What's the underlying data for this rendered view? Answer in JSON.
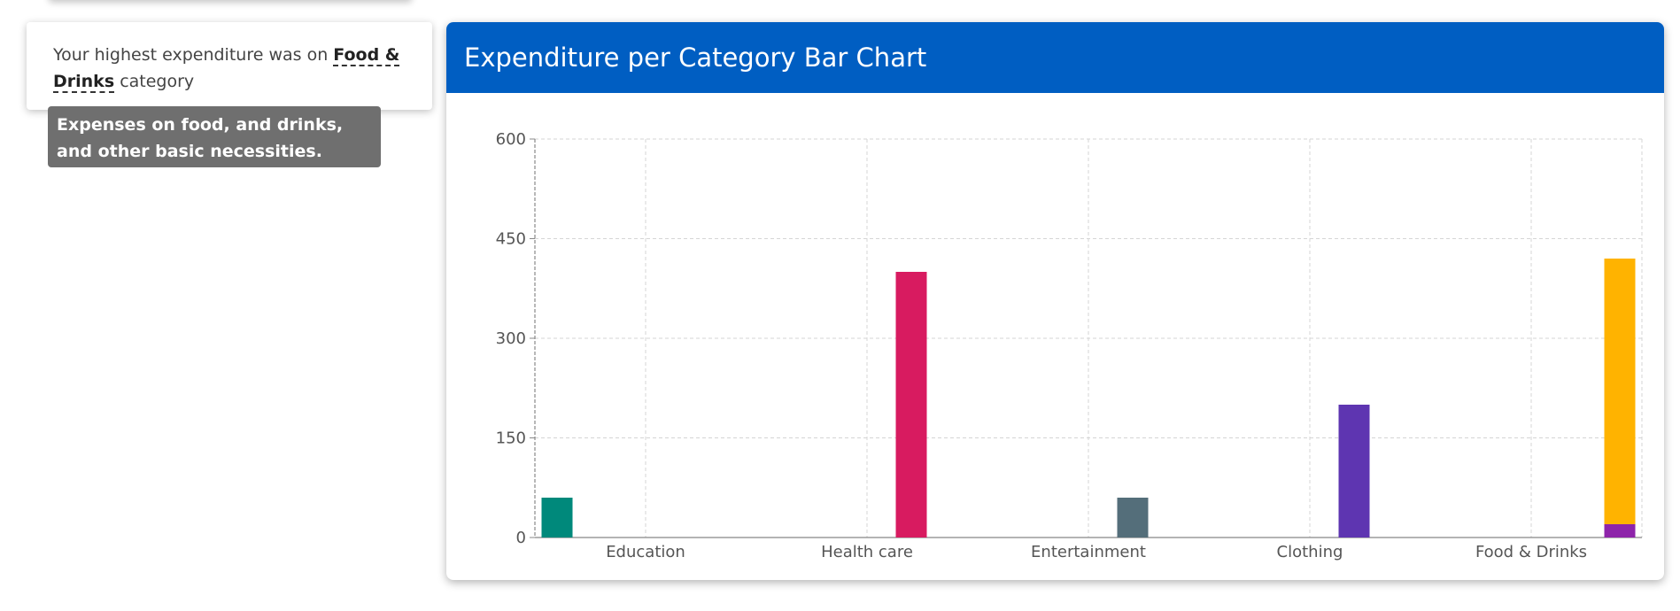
{
  "insight": {
    "prefix": "Your highest expenditure was on",
    "highlight": "Food & Drinks",
    "suffix": "category"
  },
  "tooltip": {
    "text": "Expenses on food, and drinks, and other basic necessities."
  },
  "chart_card": {
    "title": "Expenditure per Category Bar Chart"
  },
  "colors": {
    "header": "#005ec2",
    "series": [
      "#00897b",
      "#d81b60",
      "#546e7a",
      "#5e35b1",
      "#ffb300",
      "#8e24aa"
    ]
  },
  "chart_data": {
    "type": "bar",
    "title": "Expenditure per Category Bar Chart",
    "categories": [
      "Education",
      "Health care",
      "Entertainment",
      "Clothing",
      "Food & Drinks"
    ],
    "ylim": [
      0,
      600
    ],
    "yticks": [
      0,
      150,
      300,
      450,
      600
    ],
    "grid": true,
    "bars": [
      {
        "category": "Education",
        "value": 60,
        "base": 0,
        "color": "#00897b"
      },
      {
        "category": "Health care",
        "value": 400,
        "base": 0,
        "color": "#d81b60"
      },
      {
        "category": "Entertainment",
        "value": 60,
        "base": 0,
        "color": "#546e7a"
      },
      {
        "category": "Clothing",
        "value": 200,
        "base": 0,
        "color": "#5e35b1"
      },
      {
        "category": "Food & Drinks",
        "value": 400,
        "base": 20,
        "color": "#ffb300"
      },
      {
        "category": "Food & Drinks",
        "value": 20,
        "base": 0,
        "color": "#8e24aa"
      }
    ]
  }
}
